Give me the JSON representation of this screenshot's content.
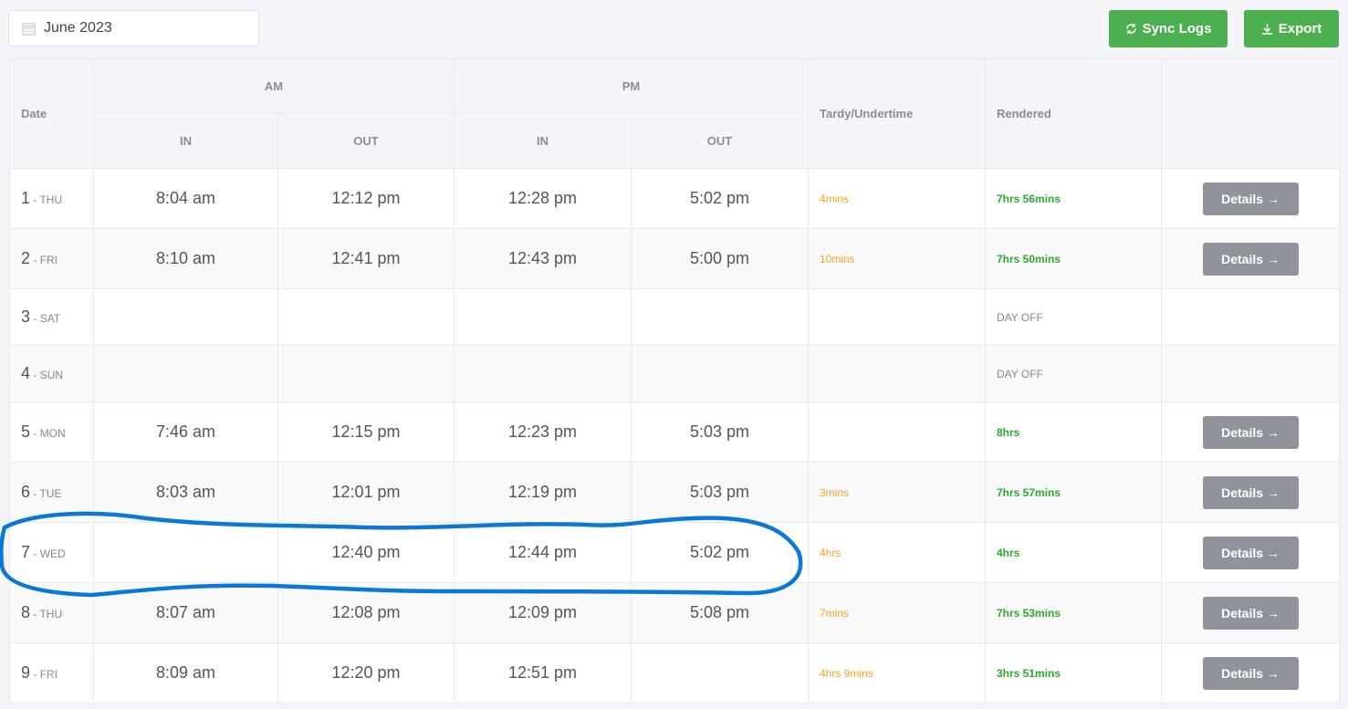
{
  "toolbar": {
    "month": "June 2023",
    "sync_label": "Sync Logs",
    "export_label": "Export",
    "calendar_icon": "calendar-icon",
    "sync_icon": "refresh-icon",
    "export_icon": "download-icon"
  },
  "table": {
    "headers": {
      "date": "Date",
      "am": "AM",
      "pm": "PM",
      "in": "IN",
      "out": "OUT",
      "tardy": "Tardy/Undertime",
      "rendered": "Rendered"
    },
    "details_label": "Details →",
    "rows": [
      {
        "num": "1",
        "day": "THU",
        "am_in": "8:04 am",
        "am_out": "12:12 pm",
        "pm_in": "12:28 pm",
        "pm_out": "5:02 pm",
        "tardy": "4mins",
        "rendered": "7hrs 56mins",
        "details": true
      },
      {
        "num": "2",
        "day": "FRI",
        "am_in": "8:10 am",
        "am_out": "12:41 pm",
        "pm_in": "12:43 pm",
        "pm_out": "5:00 pm",
        "tardy": "10mins",
        "rendered": "7hrs 50mins",
        "details": true
      },
      {
        "num": "3",
        "day": "SAT",
        "am_in": "",
        "am_out": "",
        "pm_in": "",
        "pm_out": "",
        "tardy": "",
        "rendered": "DAY OFF",
        "off": true,
        "details": false
      },
      {
        "num": "4",
        "day": "SUN",
        "am_in": "",
        "am_out": "",
        "pm_in": "",
        "pm_out": "",
        "tardy": "",
        "rendered": "DAY OFF",
        "off": true,
        "details": false
      },
      {
        "num": "5",
        "day": "MON",
        "am_in": "7:46 am",
        "am_out": "12:15 pm",
        "pm_in": "12:23 pm",
        "pm_out": "5:03 pm",
        "tardy": "",
        "rendered": "8hrs",
        "details": true
      },
      {
        "num": "6",
        "day": "TUE",
        "am_in": "8:03 am",
        "am_out": "12:01 pm",
        "pm_in": "12:19 pm",
        "pm_out": "5:03 pm",
        "tardy": "3mins",
        "rendered": "7hrs 57mins",
        "details": true
      },
      {
        "num": "7",
        "day": "WED",
        "am_in": "",
        "am_out": "12:40 pm",
        "pm_in": "12:44 pm",
        "pm_out": "5:02 pm",
        "tardy": "4hrs",
        "rendered": "4hrs",
        "details": true
      },
      {
        "num": "8",
        "day": "THU",
        "am_in": "8:07 am",
        "am_out": "12:08 pm",
        "pm_in": "12:09 pm",
        "pm_out": "5:08 pm",
        "tardy": "7mins",
        "rendered": "7hrs 53mins",
        "details": true
      },
      {
        "num": "9",
        "day": "FRI",
        "am_in": "8:09 am",
        "am_out": "12:20 pm",
        "pm_in": "12:51 pm",
        "pm_out": "",
        "tardy": "4hrs 9mins",
        "rendered": "3hrs 51mins",
        "details": true
      }
    ]
  },
  "annotation": {
    "color": "#0a78d7"
  }
}
